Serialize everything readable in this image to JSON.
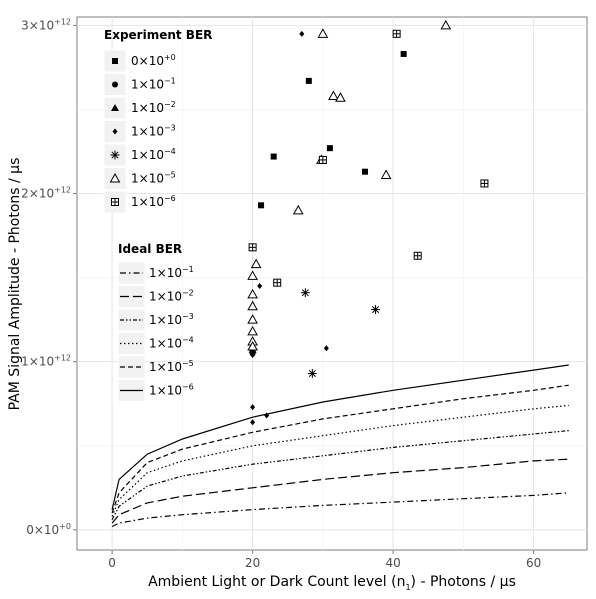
{
  "chart_data": {
    "type": "scatter",
    "xlabel_main": "Ambient Light or Dark Count level (n",
    "xlabel_sub": "1",
    "xlabel_tail": ")  - Photons / µs",
    "ylabel": "PAM Signal Amplitude - Photons / µs",
    "xlim": [
      -5,
      67.6
    ],
    "ylim": [
      -120000000000.0,
      3050000000000.0
    ],
    "x_ticks": [
      {
        "value": 0,
        "label": "0"
      },
      {
        "value": 20,
        "label": "20"
      },
      {
        "value": 40,
        "label": "40"
      },
      {
        "value": 60,
        "label": "60"
      }
    ],
    "y_ticks": [
      {
        "value": 0,
        "mant": "0",
        "exp": "+0"
      },
      {
        "value": 1000000000000.0,
        "mant": "1",
        "exp": "+12"
      },
      {
        "value": 2000000000000.0,
        "mant": "2",
        "exp": "+12"
      },
      {
        "value": 3000000000000.0,
        "mant": "3",
        "exp": "+12"
      }
    ],
    "grid": true,
    "legend_experiment": {
      "title": "Experiment BER",
      "placement": "top-left",
      "entries": [
        {
          "mant": "0",
          "exp": "+0",
          "shape": "square"
        },
        {
          "mant": "1",
          "exp": "−1",
          "shape": "circle"
        },
        {
          "mant": "1",
          "exp": "−2",
          "shape": "triangle"
        },
        {
          "mant": "1",
          "exp": "−3",
          "shape": "diamond"
        },
        {
          "mant": "1",
          "exp": "−4",
          "shape": "asterisk"
        },
        {
          "mant": "1",
          "exp": "−5",
          "shape": "open-triangle"
        },
        {
          "mant": "1",
          "exp": "−6",
          "shape": "boxplus"
        }
      ]
    },
    "legend_ideal": {
      "title": "Ideal BER",
      "placement": "left",
      "entries": [
        {
          "mant": "1",
          "exp": "−1",
          "dash": "6,3,1.5,3"
        },
        {
          "mant": "1",
          "exp": "−2",
          "dash": "9,4"
        },
        {
          "mant": "1",
          "exp": "−3",
          "dash": "4,2,1.5,2,1.5,2"
        },
        {
          "mant": "1",
          "exp": "−4",
          "dash": "1.5,2.5"
        },
        {
          "mant": "1",
          "exp": "−5",
          "dash": "5,3"
        },
        {
          "mant": "1",
          "exp": "−6",
          "dash": ""
        }
      ]
    },
    "ideal_series": [
      {
        "name": "1×10⁻¹",
        "dash": "6,3,1.5,3",
        "values": [
          [
            0,
            20000000000.0
          ],
          [
            1,
            40000000000.0
          ],
          [
            5,
            70000000000.0
          ],
          [
            10,
            90000000000.0
          ],
          [
            20,
            120000000000.0
          ],
          [
            30,
            145000000000.0
          ],
          [
            40,
            165000000000.0
          ],
          [
            50,
            185000000000.0
          ],
          [
            60,
            205000000000.0
          ],
          [
            65,
            220000000000.0
          ]
        ]
      },
      {
        "name": "1×10⁻²",
        "dash": "9,4",
        "values": [
          [
            0,
            40000000000.0
          ],
          [
            1,
            90000000000.0
          ],
          [
            5,
            160000000000.0
          ],
          [
            10,
            200000000000.0
          ],
          [
            20,
            250000000000.0
          ],
          [
            30,
            300000000000.0
          ],
          [
            40,
            340000000000.0
          ],
          [
            50,
            370000000000.0
          ],
          [
            60,
            410000000000.0
          ],
          [
            65,
            420000000000.0
          ]
        ]
      },
      {
        "name": "1×10⁻³",
        "dash": "4,2,1.5,2,1.5,2",
        "values": [
          [
            0,
            60000000000.0
          ],
          [
            1,
            140000000000.0
          ],
          [
            5,
            260000000000.0
          ],
          [
            10,
            320000000000.0
          ],
          [
            20,
            390000000000.0
          ],
          [
            30,
            440000000000.0
          ],
          [
            40,
            490000000000.0
          ],
          [
            50,
            530000000000.0
          ],
          [
            60,
            570000000000.0
          ],
          [
            65,
            590000000000.0
          ]
        ]
      },
      {
        "name": "1×10⁻⁴",
        "dash": "1.5,2.5",
        "values": [
          [
            0,
            80000000000.0
          ],
          [
            1,
            180000000000.0
          ],
          [
            5,
            340000000000.0
          ],
          [
            10,
            410000000000.0
          ],
          [
            20,
            500000000000.0
          ],
          [
            30,
            560000000000.0
          ],
          [
            40,
            620000000000.0
          ],
          [
            50,
            670000000000.0
          ],
          [
            60,
            720000000000.0
          ],
          [
            65,
            740000000000.0
          ]
        ]
      },
      {
        "name": "1×10⁻⁵",
        "dash": "5,3",
        "values": [
          [
            0,
            100000000000.0
          ],
          [
            1,
            220000000000.0
          ],
          [
            5,
            400000000000.0
          ],
          [
            10,
            480000000000.0
          ],
          [
            20,
            580000000000.0
          ],
          [
            30,
            660000000000.0
          ],
          [
            40,
            720000000000.0
          ],
          [
            50,
            780000000000.0
          ],
          [
            60,
            830000000000.0
          ],
          [
            65,
            860000000000.0
          ]
        ]
      },
      {
        "name": "1×10⁻⁶",
        "dash": "",
        "values": [
          [
            0,
            120000000000.0
          ],
          [
            1,
            300000000000.0
          ],
          [
            5,
            450000000000.0
          ],
          [
            10,
            540000000000.0
          ],
          [
            20,
            670000000000.0
          ],
          [
            30,
            760000000000.0
          ],
          [
            40,
            830000000000.0
          ],
          [
            50,
            890000000000.0
          ],
          [
            60,
            950000000000.0
          ],
          [
            65,
            980000000000.0
          ]
        ]
      }
    ],
    "experiment_series": [
      {
        "name": "0×10⁺⁰",
        "shape": "square",
        "points": [
          [
            28,
            2670000000000.0
          ],
          [
            41.5,
            2830000000000.0
          ],
          [
            31,
            2270000000000.0
          ],
          [
            36,
            2130000000000.0
          ],
          [
            23,
            2220000000000.0
          ],
          [
            21.2,
            1930000000000.0
          ]
        ]
      },
      {
        "name": "1×10⁻¹",
        "shape": "circle",
        "points": [
          [
            20,
            1060000000000.0
          ],
          [
            20,
            1050000000000.0
          ]
        ]
      },
      {
        "name": "1×10⁻²",
        "shape": "triangle",
        "points": [
          [
            20,
            1070000000000.0
          ]
        ]
      },
      {
        "name": "1×10⁻³",
        "shape": "diamond",
        "points": [
          [
            27,
            2950000000000.0
          ],
          [
            21,
            1450000000000.0
          ],
          [
            30.5,
            1080000000000.0
          ],
          [
            20,
            1040000000000.0
          ],
          [
            20,
            730000000000.0
          ],
          [
            20,
            640000000000.0
          ],
          [
            22,
            680000000000.0
          ]
        ]
      },
      {
        "name": "1×10⁻⁴",
        "shape": "asterisk",
        "points": [
          [
            27.5,
            1410000000000.0
          ],
          [
            37.5,
            1310000000000.0
          ],
          [
            28.5,
            930000000000.0
          ]
        ]
      },
      {
        "name": "1×10⁻⁵",
        "shape": "open-triangle",
        "points": [
          [
            30,
            2950000000000.0
          ],
          [
            47.5,
            3000000000000.0
          ],
          [
            31.5,
            2580000000000.0
          ],
          [
            32.5,
            2570000000000.0
          ],
          [
            29.8,
            2200000000000.0
          ],
          [
            39,
            2110000000000.0
          ],
          [
            26.5,
            1900000000000.0
          ],
          [
            20.5,
            1580000000000.0
          ],
          [
            20,
            1510000000000.0
          ],
          [
            20,
            1400000000000.0
          ],
          [
            20,
            1330000000000.0
          ],
          [
            20,
            1250000000000.0
          ],
          [
            20,
            1180000000000.0
          ],
          [
            20,
            1120000000000.0
          ],
          [
            20,
            1090000000000.0
          ]
        ]
      },
      {
        "name": "1×10⁻⁶",
        "shape": "boxplus",
        "points": [
          [
            40.5,
            2950000000000.0
          ],
          [
            53,
            2060000000000.0
          ],
          [
            30,
            2200000000000.0
          ],
          [
            20,
            1680000000000.0
          ],
          [
            23.5,
            1470000000000.0
          ],
          [
            43.5,
            1630000000000.0
          ]
        ]
      }
    ]
  }
}
